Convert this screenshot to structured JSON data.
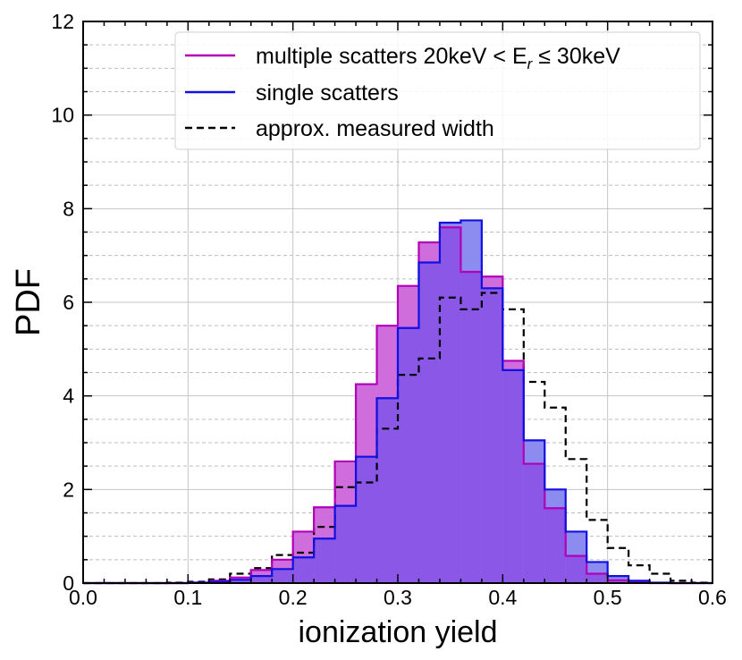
{
  "chart_data": {
    "type": "histogram",
    "xlabel": "ionization yield",
    "ylabel": "PDF",
    "xlim": [
      0.0,
      0.6
    ],
    "ylim": [
      0,
      12
    ],
    "x_ticks": [
      "0.0",
      "0.1",
      "0.2",
      "0.3",
      "0.4",
      "0.5",
      "0.6"
    ],
    "y_ticks": [
      "0",
      "2",
      "4",
      "6",
      "8",
      "10",
      "12"
    ],
    "grid": true,
    "legend_position": "top-right",
    "bin_width": 0.02,
    "bin_start": 0.0,
    "series": [
      {
        "key": "multi",
        "legend_text": "multiple scatters 20keV < E",
        "legend_subscript": "r",
        "legend_tail": " ≤ 30keV",
        "style": "filled-step",
        "color": "#b100b8",
        "fill": "#cf6ddc",
        "values": [
          0,
          0,
          0,
          0,
          0,
          0.01,
          0.05,
          0.12,
          0.28,
          0.5,
          1.1,
          1.62,
          2.6,
          4.25,
          5.5,
          6.35,
          7.28,
          7.6,
          6.65,
          6.55,
          4.75,
          2.55,
          1.6,
          0.58,
          0.2,
          0.06,
          0.02,
          0,
          0,
          0
        ]
      },
      {
        "key": "single",
        "legend_text": "single scatters",
        "style": "filled-step",
        "color": "#1010e0",
        "fill": "#8c8cf0",
        "values": [
          0,
          0,
          0,
          0,
          0,
          0.01,
          0.03,
          0.07,
          0.15,
          0.3,
          0.55,
          0.95,
          1.65,
          2.7,
          3.95,
          5.45,
          6.85,
          7.7,
          7.75,
          6.3,
          4.55,
          3.05,
          2.0,
          1.1,
          0.45,
          0.15,
          0.05,
          0.01,
          0,
          0
        ]
      },
      {
        "key": "measured",
        "legend_text": "approx. measured width",
        "style": "dashed-step",
        "color": "#000000",
        "values": [
          0,
          0,
          0,
          0,
          0.01,
          0.03,
          0.08,
          0.2,
          0.32,
          0.6,
          0.65,
          1.2,
          2.05,
          2.15,
          3.3,
          4.45,
          4.8,
          6.1,
          5.85,
          6.2,
          5.85,
          4.3,
          3.75,
          2.65,
          1.35,
          0.75,
          0.38,
          0.2,
          0.05,
          0.01
        ]
      }
    ]
  }
}
